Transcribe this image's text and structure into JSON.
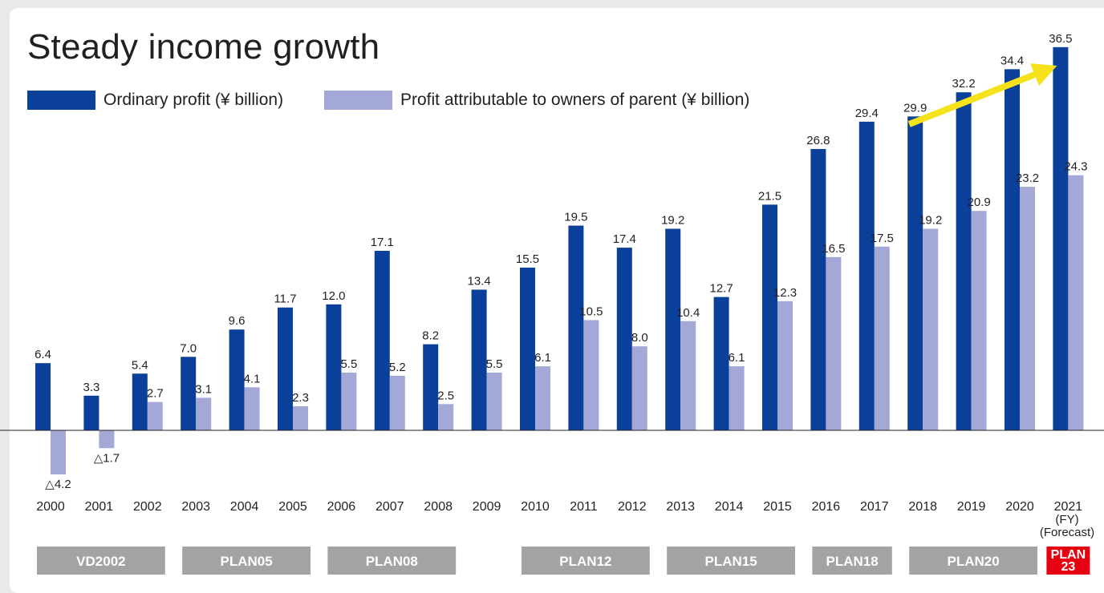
{
  "title": "Steady income growth",
  "legend": {
    "ordinary": "Ordinary profit (¥ billion)",
    "attributable": "Profit attributable to owners of parent (¥ billion)"
  },
  "colors": {
    "ordinary": "#0a3f9a",
    "attributable": "#a4a8d6",
    "arrow": "#f5e21a",
    "plan_gray": "#a3a3a3",
    "plan_red": "#e60012",
    "axis": "#231f20"
  },
  "chart_data": {
    "type": "bar",
    "categories": [
      "2000",
      "2001",
      "2002",
      "2003",
      "2004",
      "2005",
      "2006",
      "2007",
      "2008",
      "2009",
      "2010",
      "2011",
      "2012",
      "2013",
      "2014",
      "2015",
      "2016",
      "2017",
      "2018",
      "2019",
      "2020",
      "2021"
    ],
    "category_extra_lines": {
      "2021": [
        "(FY)",
        "(Forecast)"
      ]
    },
    "series": [
      {
        "name": "Ordinary profit (¥ billion)",
        "values": [
          6.4,
          3.3,
          5.4,
          7.0,
          9.6,
          11.7,
          12.0,
          17.1,
          8.2,
          13.4,
          15.5,
          19.5,
          17.4,
          19.2,
          12.7,
          21.5,
          26.8,
          29.4,
          29.9,
          32.2,
          34.4,
          36.5
        ],
        "labels": [
          "6.4",
          "3.3",
          "5.4",
          "7.0",
          "9.6",
          "11.7",
          "12.0",
          "17.1",
          "8.2",
          "13.4",
          "15.5",
          "19.5",
          "17.4",
          "19.2",
          "12.7",
          "21.5",
          "26.8",
          "29.4",
          "29.9",
          "32.2",
          "34.4",
          "36.5"
        ]
      },
      {
        "name": "Profit attributable to owners of parent (¥ billion)",
        "values": [
          -4.2,
          -1.7,
          2.7,
          3.1,
          4.1,
          2.3,
          5.5,
          5.2,
          2.5,
          5.5,
          6.1,
          10.5,
          8.0,
          10.4,
          6.1,
          12.3,
          16.5,
          17.5,
          19.2,
          20.9,
          23.2,
          24.3
        ],
        "labels": [
          "△4.2",
          "△1.7",
          "2.7",
          "3.1",
          "4.1",
          "2.3",
          "5.5",
          "5.2",
          "2.5",
          "5.5",
          "6.1",
          "10.5",
          "8.0",
          "10.4",
          "6.1",
          "12.3",
          "16.5",
          "17.5",
          "19.2",
          "20.9",
          "23.2",
          "24.3"
        ]
      }
    ],
    "ylim": [
      -4.2,
      36.5
    ],
    "grid": false,
    "legend_position": "top-left",
    "trend_arrow": {
      "from_category": "2018",
      "to_category": "2021"
    },
    "plans": [
      {
        "label": "VD2002",
        "start": "2000",
        "end": "2002",
        "color": "gray"
      },
      {
        "label": "PLAN05",
        "start": "2003",
        "end": "2005",
        "color": "gray"
      },
      {
        "label": "PLAN08",
        "start": "2006",
        "end": "2008",
        "color": "gray"
      },
      {
        "label": "PLAN12",
        "start": "2010",
        "end": "2012",
        "color": "gray"
      },
      {
        "label": "PLAN15",
        "start": "2013",
        "end": "2015",
        "color": "gray"
      },
      {
        "label": "PLAN18",
        "start": "2016",
        "end": "2017",
        "color": "gray"
      },
      {
        "label": "PLAN20",
        "start": "2018",
        "end": "2020",
        "color": "gray"
      },
      {
        "label": "PLAN\n23",
        "start": "2021",
        "end": "2021",
        "color": "red"
      }
    ]
  }
}
